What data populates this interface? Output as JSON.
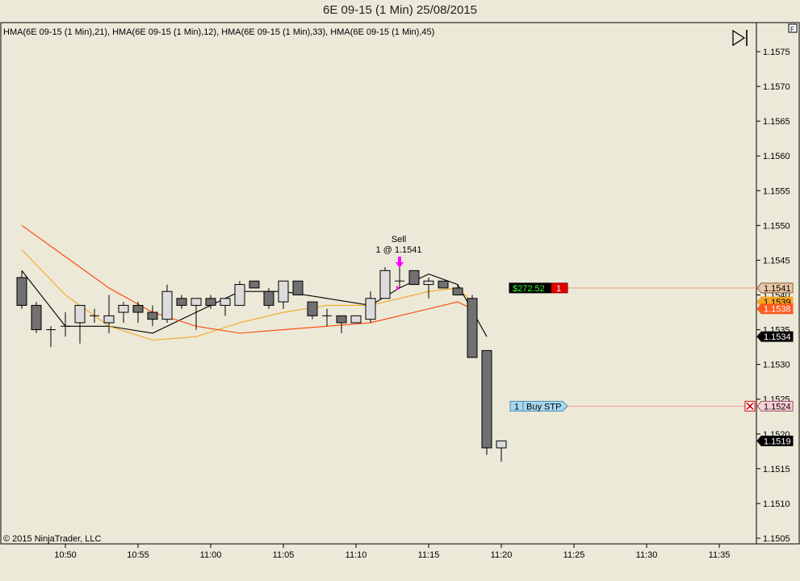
{
  "title": "6E 09-15 (1 Min)  25/08/2015",
  "indicator_legend": "HMA(6E 09-15 (1 Min),21), HMA(6E 09-15 (1 Min),12), HMA(6E 09-15 (1 Min),33), HMA(6E 09-15 (1 Min),45)",
  "copyright": "© 2015 NinjaTrader, LLC",
  "corner_tag": "F",
  "colors": {
    "background": "#ece9d8",
    "up_candle": "#dcdcdc",
    "down_candle": "#707070",
    "hma21": "#f5a623",
    "hma12": "#000000",
    "hma33": "#ff4500",
    "hma45": "#ff7f50"
  },
  "chart_data": {
    "type": "candlestick",
    "x_labels": [
      "10:50",
      "10:55",
      "11:00",
      "11:05",
      "11:10",
      "11:15",
      "11:20",
      "11:25",
      "11:30",
      "11:35"
    ],
    "y_ticks": [
      "1.1575",
      "1.1570",
      "1.1565",
      "1.1560",
      "1.1555",
      "1.1550",
      "1.1545",
      "1.1540",
      "1.1535",
      "1.1530",
      "1.1525",
      "1.1520",
      "1.1515",
      "1.1510",
      "1.1505"
    ],
    "ylim": [
      1.1503,
      1.1578
    ],
    "candles": [
      {
        "t": "10:47",
        "o": 1.15425,
        "h": 1.15435,
        "l": 1.1538,
        "c": 1.15385
      },
      {
        "t": "10:48",
        "o": 1.15385,
        "h": 1.1539,
        "l": 1.15345,
        "c": 1.1535
      },
      {
        "t": "10:49",
        "o": 1.1535,
        "h": 1.15355,
        "l": 1.15325,
        "c": 1.1535
      },
      {
        "t": "10:50",
        "o": 1.15355,
        "h": 1.15375,
        "l": 1.1534,
        "c": 1.15355
      },
      {
        "t": "10:51",
        "o": 1.1536,
        "h": 1.15385,
        "l": 1.1533,
        "c": 1.15385
      },
      {
        "t": "10:52",
        "o": 1.1537,
        "h": 1.1538,
        "l": 1.1536,
        "c": 1.1537
      },
      {
        "t": "10:53",
        "o": 1.1536,
        "h": 1.154,
        "l": 1.15345,
        "c": 1.1537
      },
      {
        "t": "10:54",
        "o": 1.15375,
        "h": 1.1539,
        "l": 1.1536,
        "c": 1.15385
      },
      {
        "t": "10:55",
        "o": 1.15385,
        "h": 1.1539,
        "l": 1.1536,
        "c": 1.15375
      },
      {
        "t": "10:56",
        "o": 1.15375,
        "h": 1.15385,
        "l": 1.15355,
        "c": 1.15365
      },
      {
        "t": "10:57",
        "o": 1.15365,
        "h": 1.15415,
        "l": 1.1536,
        "c": 1.15405
      },
      {
        "t": "10:58",
        "o": 1.15395,
        "h": 1.154,
        "l": 1.1538,
        "c": 1.15385
      },
      {
        "t": "10:59",
        "o": 1.15385,
        "h": 1.15395,
        "l": 1.1535,
        "c": 1.15395
      },
      {
        "t": "11:00",
        "o": 1.15395,
        "h": 1.154,
        "l": 1.1538,
        "c": 1.15385
      },
      {
        "t": "11:01",
        "o": 1.15385,
        "h": 1.15395,
        "l": 1.1537,
        "c": 1.15395
      },
      {
        "t": "11:02",
        "o": 1.15385,
        "h": 1.1542,
        "l": 1.15385,
        "c": 1.15415
      },
      {
        "t": "11:03",
        "o": 1.1542,
        "h": 1.1542,
        "l": 1.1541,
        "c": 1.1541
      },
      {
        "t": "11:04",
        "o": 1.15405,
        "h": 1.1541,
        "l": 1.1538,
        "c": 1.15385
      },
      {
        "t": "11:05",
        "o": 1.1539,
        "h": 1.1542,
        "l": 1.1538,
        "c": 1.1542
      },
      {
        "t": "11:06",
        "o": 1.1542,
        "h": 1.1542,
        "l": 1.154,
        "c": 1.154
      },
      {
        "t": "11:07",
        "o": 1.1539,
        "h": 1.1539,
        "l": 1.15365,
        "c": 1.1537
      },
      {
        "t": "11:08",
        "o": 1.1537,
        "h": 1.1538,
        "l": 1.15355,
        "c": 1.1537
      },
      {
        "t": "11:09",
        "o": 1.1537,
        "h": 1.1537,
        "l": 1.15345,
        "c": 1.1536
      },
      {
        "t": "11:10",
        "o": 1.1536,
        "h": 1.1537,
        "l": 1.1536,
        "c": 1.1537
      },
      {
        "t": "11:11",
        "o": 1.15365,
        "h": 1.15405,
        "l": 1.1536,
        "c": 1.15395
      },
      {
        "t": "11:12",
        "o": 1.15395,
        "h": 1.1544,
        "l": 1.15395,
        "c": 1.15435
      },
      {
        "t": "11:13",
        "o": 1.1542,
        "h": 1.1544,
        "l": 1.1541,
        "c": 1.1542
      },
      {
        "t": "11:14",
        "o": 1.15435,
        "h": 1.15435,
        "l": 1.15415,
        "c": 1.15415
      },
      {
        "t": "11:15",
        "o": 1.15415,
        "h": 1.15425,
        "l": 1.15395,
        "c": 1.1542
      },
      {
        "t": "11:16",
        "o": 1.1542,
        "h": 1.1542,
        "l": 1.1541,
        "c": 1.1541
      },
      {
        "t": "11:17",
        "o": 1.1541,
        "h": 1.15415,
        "l": 1.154,
        "c": 1.154
      },
      {
        "t": "11:18",
        "o": 1.15395,
        "h": 1.154,
        "l": 1.1531,
        "c": 1.1531
      },
      {
        "t": "11:19",
        "o": 1.1532,
        "h": 1.1532,
        "l": 1.1517,
        "c": 1.1518
      },
      {
        "t": "11:20",
        "o": 1.1518,
        "h": 1.1519,
        "l": 1.1516,
        "c": 1.1519
      }
    ],
    "hma_lines": [
      {
        "name": "HMA(6E 09-15 (1 Min),12)",
        "color": "#000000",
        "points": [
          [
            0,
            1.15435
          ],
          [
            3,
            1.15355
          ],
          [
            6,
            1.15355
          ],
          [
            9,
            1.15345
          ],
          [
            12,
            1.15375
          ],
          [
            15,
            1.15405
          ],
          [
            18,
            1.15405
          ],
          [
            21,
            1.15395
          ],
          [
            24,
            1.15385
          ],
          [
            26,
            1.1541
          ],
          [
            28,
            1.1543
          ],
          [
            30,
            1.15415
          ],
          [
            32,
            1.1534
          ]
        ]
      },
      {
        "name": "HMA(6E 09-15 (1 Min),21)",
        "color": "#f5a623",
        "points": [
          [
            0,
            1.15465
          ],
          [
            3,
            1.154
          ],
          [
            6,
            1.15355
          ],
          [
            9,
            1.15335
          ],
          [
            12,
            1.1534
          ],
          [
            15,
            1.1536
          ],
          [
            18,
            1.15375
          ],
          [
            21,
            1.15385
          ],
          [
            24,
            1.15385
          ],
          [
            26,
            1.15395
          ],
          [
            28,
            1.15405
          ],
          [
            30,
            1.1541
          ],
          [
            31,
            1.1539
          ]
        ]
      },
      {
        "name": "HMA(6E 09-15 (1 Min),33)",
        "color": "#ff4500",
        "points": [
          [
            0,
            1.155
          ],
          [
            3,
            1.15455
          ],
          [
            6,
            1.1541
          ],
          [
            9,
            1.15375
          ],
          [
            12,
            1.15355
          ],
          [
            15,
            1.15345
          ],
          [
            18,
            1.1535
          ],
          [
            21,
            1.15355
          ],
          [
            24,
            1.1536
          ],
          [
            26,
            1.1537
          ],
          [
            28,
            1.1538
          ],
          [
            30,
            1.1539
          ],
          [
            31,
            1.1538
          ]
        ]
      }
    ],
    "annotations": [
      {
        "label_line1": "Sell",
        "label_line2": "1 @ 1.1541",
        "candle_index": 26,
        "price": 1.1541,
        "arrow_color": "#ff00ff"
      }
    ],
    "orders": [
      {
        "qty": "1",
        "label": "Buy STP",
        "price_label": "1.1524",
        "price": 1.1524,
        "line_color": "#ff9999"
      }
    ],
    "position": {
      "pnl": "$272.52",
      "qty": "1",
      "price_label": "1.1541",
      "price": 1.1541,
      "line_color": "#e9a27a"
    },
    "price_markers": [
      {
        "label": "1.1539",
        "price": 1.1539,
        "bg": "#f5a623",
        "fg": "#000000"
      },
      {
        "label": "1.1538",
        "price": 1.1538,
        "bg": "#ff5a1f",
        "fg": "#ffffff"
      },
      {
        "label": "1.1534",
        "price": 1.1534,
        "bg": "#000000",
        "fg": "#ffffff"
      },
      {
        "label": "1.1519",
        "price": 1.1519,
        "bg": "#000000",
        "fg": "#ffffff"
      }
    ]
  }
}
